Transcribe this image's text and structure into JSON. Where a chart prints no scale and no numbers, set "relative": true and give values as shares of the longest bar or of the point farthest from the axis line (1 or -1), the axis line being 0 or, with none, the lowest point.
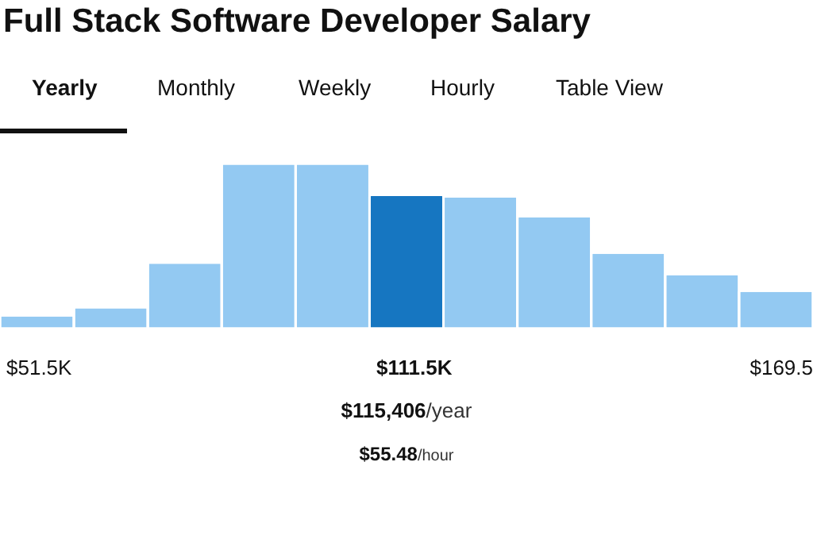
{
  "chart_data": {
    "type": "bar",
    "title": "Full Stack Software Developer Salary",
    "relative": true,
    "categories": [
      null,
      null,
      null,
      null,
      null,
      null,
      null,
      null,
      null,
      null,
      null
    ],
    "values": [
      0.08,
      0.13,
      0.4,
      1,
      1,
      0.81,
      0.8,
      0.68,
      0.46,
      0.33,
      0.23
    ],
    "colors": [
      "#93c9f2",
      "#93c9f2",
      "#93c9f2",
      "#93c9f2",
      "#93c9f2",
      "#1676c1",
      "#93c9f2",
      "#93c9f2",
      "#93c9f2",
      "#93c9f2",
      "#93c9f2"
    ],
    "annotations": [
      "Yearly",
      "Monthly",
      "Weekly",
      "Hourly",
      "Table View",
      "$51.5K",
      "$111.5K",
      "$169.5",
      "$115,406/year",
      "$55.48/hour"
    ]
  }
}
